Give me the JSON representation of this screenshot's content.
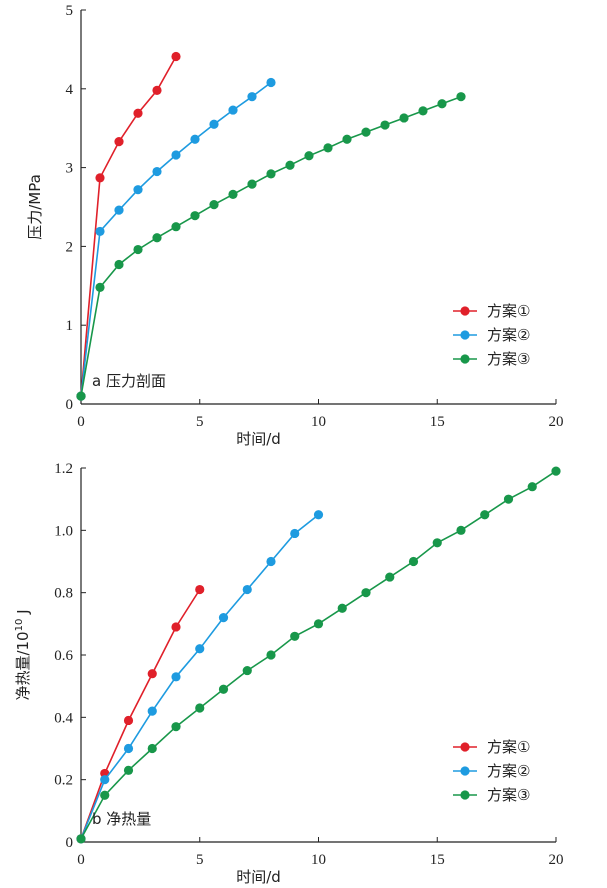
{
  "chart_data": [
    {
      "type": "line",
      "panel_label": "a 压力剖面",
      "xlabel": "时间/d",
      "ylabel": "压力/MPa",
      "xlim": [
        0,
        20
      ],
      "ylim": [
        0,
        5
      ],
      "xticks": [
        0,
        5,
        10,
        15,
        20
      ],
      "yticks": [
        0,
        1,
        2,
        3,
        4,
        5
      ],
      "legend_position": "right-lower",
      "series": [
        {
          "name": "方案①",
          "color": "#e0202a",
          "x": [
            0,
            0.8,
            1.6,
            2.4,
            3.2,
            4.0
          ],
          "y": [
            0.1,
            2.87,
            3.33,
            3.69,
            3.98,
            4.41
          ]
        },
        {
          "name": "方案②",
          "color": "#1e9be0",
          "x": [
            0,
            0.8,
            1.6,
            2.4,
            3.2,
            4.0,
            4.8,
            5.6,
            6.4,
            7.2,
            8.0
          ],
          "y": [
            0.1,
            2.19,
            2.46,
            2.72,
            2.95,
            3.16,
            3.36,
            3.55,
            3.73,
            3.9,
            4.08
          ]
        },
        {
          "name": "方案③",
          "color": "#18974a",
          "x": [
            0,
            0.8,
            1.6,
            2.4,
            3.2,
            4.0,
            4.8,
            5.6,
            6.4,
            7.2,
            8.0,
            8.8,
            9.6,
            10.4,
            11.2,
            12.0,
            12.8,
            13.6,
            14.4,
            15.2,
            16.0
          ],
          "y": [
            0.1,
            1.48,
            1.77,
            1.96,
            2.11,
            2.25,
            2.39,
            2.53,
            2.66,
            2.79,
            2.92,
            3.03,
            3.15,
            3.25,
            3.36,
            3.45,
            3.54,
            3.63,
            3.72,
            3.81,
            3.9
          ]
        }
      ]
    },
    {
      "type": "line",
      "panel_label": "b 净热量",
      "xlabel": "时间/d",
      "ylabel": "净热量/10",
      "ylabel_sup": "10",
      "ylabel_unit": " J",
      "xlim": [
        0,
        20
      ],
      "ylim": [
        0,
        1.2
      ],
      "xticks": [
        0,
        5,
        10,
        15,
        20
      ],
      "yticks": [
        0,
        0.2,
        0.4,
        0.6,
        0.8,
        1.0,
        1.2
      ],
      "ytick_labels": [
        "0",
        "0.2",
        "0.4",
        "0.6",
        "0.8",
        "1.0",
        "1.2"
      ],
      "legend_position": "right-lower",
      "series": [
        {
          "name": "方案①",
          "color": "#e0202a",
          "x": [
            0,
            1,
            2,
            3,
            4,
            5
          ],
          "y": [
            0.01,
            0.22,
            0.39,
            0.54,
            0.69,
            0.81
          ]
        },
        {
          "name": "方案②",
          "color": "#1e9be0",
          "x": [
            0,
            1,
            2,
            3,
            4,
            5,
            6,
            7,
            8,
            9,
            10
          ],
          "y": [
            0.01,
            0.2,
            0.3,
            0.42,
            0.53,
            0.62,
            0.72,
            0.81,
            0.9,
            0.99,
            1.05
          ]
        },
        {
          "name": "方案③",
          "color": "#18974a",
          "x": [
            0,
            1,
            2,
            3,
            4,
            5,
            6,
            7,
            8,
            9,
            10,
            11,
            12,
            13,
            14,
            15,
            16,
            17,
            18,
            19,
            20
          ],
          "y": [
            0.01,
            0.15,
            0.23,
            0.3,
            0.37,
            0.43,
            0.49,
            0.55,
            0.6,
            0.66,
            0.7,
            0.75,
            0.8,
            0.85,
            0.9,
            0.96,
            1.0,
            1.05,
            1.1,
            1.14,
            1.19
          ]
        }
      ]
    }
  ]
}
